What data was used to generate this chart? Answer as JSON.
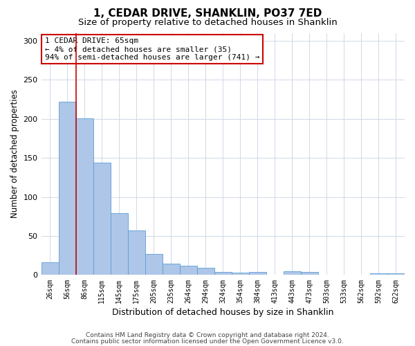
{
  "title": "1, CEDAR DRIVE, SHANKLIN, PO37 7ED",
  "subtitle": "Size of property relative to detached houses in Shanklin",
  "xlabel": "Distribution of detached houses by size in Shanklin",
  "ylabel": "Number of detached properties",
  "footnote1": "Contains HM Land Registry data © Crown copyright and database right 2024.",
  "footnote2": "Contains public sector information licensed under the Open Government Licence v3.0.",
  "categories": [
    "26sqm",
    "56sqm",
    "86sqm",
    "115sqm",
    "145sqm",
    "175sqm",
    "205sqm",
    "235sqm",
    "264sqm",
    "294sqm",
    "324sqm",
    "354sqm",
    "384sqm",
    "413sqm",
    "443sqm",
    "473sqm",
    "503sqm",
    "533sqm",
    "562sqm",
    "592sqm",
    "622sqm"
  ],
  "values": [
    16,
    222,
    201,
    144,
    79,
    57,
    27,
    15,
    12,
    9,
    4,
    3,
    4,
    0,
    5,
    4,
    0,
    0,
    0,
    2,
    2
  ],
  "bar_color": "#aec6e8",
  "bar_edge_color": "#5a9fd4",
  "red_line_x": 1.5,
  "annotation_line1": "1 CEDAR DRIVE: 65sqm",
  "annotation_line2": "← 4% of detached houses are smaller (35)",
  "annotation_line3": "94% of semi-detached houses are larger (741) →",
  "annotation_box_color": "#ffffff",
  "annotation_box_edge_color": "#cc0000",
  "red_line_color": "#cc0000",
  "ylim": [
    0,
    310
  ],
  "yticks": [
    0,
    50,
    100,
    150,
    200,
    250,
    300
  ],
  "background_color": "#ffffff",
  "grid_color": "#d0d8e8",
  "title_fontsize": 11,
  "subtitle_fontsize": 9.5,
  "xlabel_fontsize": 9,
  "ylabel_fontsize": 8.5,
  "tick_fontsize": 7,
  "footnote_fontsize": 6.5,
  "annotation_fontsize": 8
}
